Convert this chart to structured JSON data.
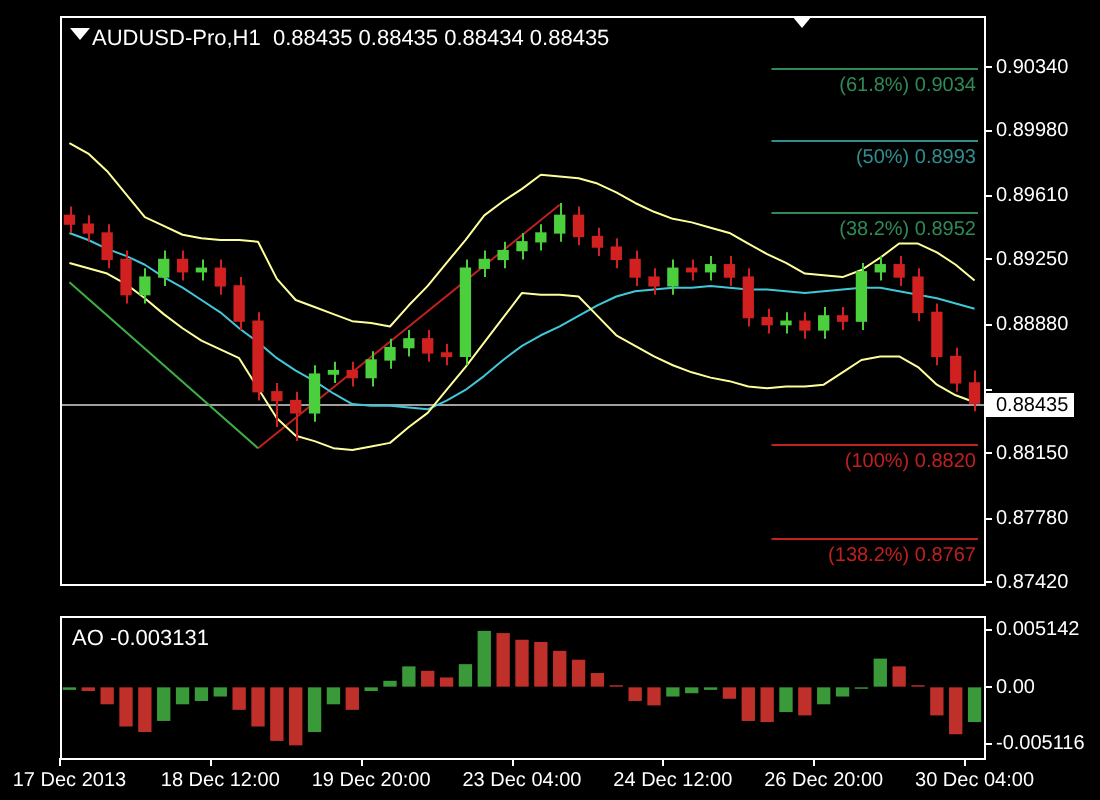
{
  "chart_data": [
    {
      "type": "candlestick",
      "title": "AUDUSD-Pro,H1  0.88435 0.88435 0.88434 0.88435",
      "categories": [
        null,
        null,
        null,
        null,
        null,
        null,
        null,
        null,
        null,
        null,
        null,
        null,
        null,
        null,
        null,
        null,
        null,
        null,
        null,
        null,
        null,
        null,
        null,
        null,
        null,
        null,
        null,
        null,
        null,
        null,
        null,
        null,
        null,
        null,
        null,
        null,
        null,
        null,
        null,
        null,
        null,
        null,
        null,
        null,
        null,
        null,
        null,
        null,
        null
      ],
      "ohlc": [
        [
          0.895,
          0.8955,
          0.894,
          0.8945
        ],
        [
          0.8945,
          0.895,
          0.8935,
          0.894
        ],
        [
          0.894,
          0.8945,
          0.892,
          0.8925
        ],
        [
          0.8925,
          0.893,
          0.89,
          0.8905
        ],
        [
          0.8905,
          0.892,
          0.89,
          0.8915
        ],
        [
          0.8915,
          0.893,
          0.891,
          0.8925
        ],
        [
          0.8925,
          0.893,
          0.8913,
          0.8918
        ],
        [
          0.8918,
          0.8925,
          0.8913,
          0.892
        ],
        [
          0.892,
          0.8925,
          0.8905,
          0.891
        ],
        [
          0.891,
          0.8915,
          0.8885,
          0.889
        ],
        [
          0.889,
          0.8895,
          0.8845,
          0.885
        ],
        [
          0.885,
          0.8855,
          0.883,
          0.8845
        ],
        [
          0.8845,
          0.885,
          0.8822,
          0.8838
        ],
        [
          0.8838,
          0.8865,
          0.8833,
          0.886
        ],
        [
          0.886,
          0.8867,
          0.8855,
          0.8862
        ],
        [
          0.8862,
          0.8867,
          0.8853,
          0.8858
        ],
        [
          0.8858,
          0.8873,
          0.8853,
          0.8868
        ],
        [
          0.8868,
          0.888,
          0.8863,
          0.8875
        ],
        [
          0.8875,
          0.8885,
          0.887,
          0.888
        ],
        [
          0.888,
          0.8885,
          0.8867,
          0.8872
        ],
        [
          0.8872,
          0.8877,
          0.8865,
          0.887
        ],
        [
          0.887,
          0.8925,
          0.8865,
          0.892
        ],
        [
          0.892,
          0.893,
          0.8915,
          0.8925
        ],
        [
          0.8925,
          0.8935,
          0.892,
          0.893
        ],
        [
          0.893,
          0.894,
          0.8925,
          0.8935
        ],
        [
          0.8935,
          0.8945,
          0.893,
          0.894
        ],
        [
          0.894,
          0.8957,
          0.8935,
          0.895
        ],
        [
          0.895,
          0.8955,
          0.8933,
          0.8938
        ],
        [
          0.8938,
          0.8943,
          0.8927,
          0.8932
        ],
        [
          0.8932,
          0.8937,
          0.892,
          0.8925
        ],
        [
          0.8925,
          0.893,
          0.891,
          0.8915
        ],
        [
          0.8915,
          0.892,
          0.8905,
          0.891
        ],
        [
          0.891,
          0.8925,
          0.8905,
          0.892
        ],
        [
          0.892,
          0.8925,
          0.8913,
          0.8918
        ],
        [
          0.8918,
          0.8927,
          0.8913,
          0.8922
        ],
        [
          0.8922,
          0.8927,
          0.891,
          0.8915
        ],
        [
          0.8915,
          0.892,
          0.8887,
          0.8892
        ],
        [
          0.8892,
          0.8897,
          0.8883,
          0.8888
        ],
        [
          0.8888,
          0.8895,
          0.8883,
          0.889
        ],
        [
          0.889,
          0.8895,
          0.888,
          0.8885
        ],
        [
          0.8885,
          0.8898,
          0.888,
          0.8893
        ],
        [
          0.8893,
          0.8898,
          0.8885,
          0.889
        ],
        [
          0.889,
          0.8923,
          0.8885,
          0.8918
        ],
        [
          0.8918,
          0.8927,
          0.8913,
          0.8922
        ],
        [
          0.8922,
          0.8927,
          0.891,
          0.8915
        ],
        [
          0.8915,
          0.892,
          0.889,
          0.8895
        ],
        [
          0.8895,
          0.89,
          0.8865,
          0.887
        ],
        [
          0.887,
          0.8875,
          0.885,
          0.8855
        ],
        [
          0.8855,
          0.8862,
          0.8839,
          0.88435
        ]
      ],
      "colors": [
        "#d02020",
        "#d02020",
        "#d02020",
        "#d02020",
        "#4ccf3c",
        "#4ccf3c",
        "#d02020",
        "#4ccf3c",
        "#d02020",
        "#d02020",
        "#d02020",
        "#d02020",
        "#d02020",
        "#4ccf3c",
        "#4ccf3c",
        "#d02020",
        "#4ccf3c",
        "#4ccf3c",
        "#4ccf3c",
        "#d02020",
        "#d02020",
        "#4ccf3c",
        "#4ccf3c",
        "#4ccf3c",
        "#4ccf3c",
        "#4ccf3c",
        "#4ccf3c",
        "#d02020",
        "#d02020",
        "#d02020",
        "#d02020",
        "#d02020",
        "#4ccf3c",
        "#d02020",
        "#4ccf3c",
        "#d02020",
        "#d02020",
        "#d02020",
        "#4ccf3c",
        "#d02020",
        "#4ccf3c",
        "#d02020",
        "#4ccf3c",
        "#4ccf3c",
        "#d02020",
        "#d02020",
        "#d02020",
        "#d02020",
        "#d02020"
      ],
      "series": [
        {
          "type": "line",
          "color": "#ffff99",
          "values": [
            0.8991,
            0.8985,
            0.8975,
            0.8962,
            0.8949,
            0.8944,
            0.8939,
            0.8937,
            0.8936,
            0.8936,
            0.8935,
            0.8914,
            0.8902,
            0.8898,
            0.8894,
            0.889,
            0.8889,
            0.8887,
            0.8899,
            0.891,
            0.8923,
            0.8936,
            0.895,
            0.8958,
            0.8965,
            0.8973,
            0.8972,
            0.8971,
            0.8968,
            0.8963,
            0.8957,
            0.8952,
            0.8948,
            0.8946,
            0.8943,
            0.894,
            0.8934,
            0.8928,
            0.8923,
            0.8917,
            0.8916,
            0.8915,
            0.8919,
            0.8926,
            0.8934,
            0.8934,
            0.8929,
            0.8922,
            0.8913
          ]
        },
        {
          "type": "line",
          "color": "#ffff99",
          "values": [
            0.8923,
            0.892,
            0.8917,
            0.8911,
            0.8903,
            0.8894,
            0.8886,
            0.8879,
            0.8874,
            0.8869,
            0.8852,
            0.8835,
            0.8825,
            0.8822,
            0.8818,
            0.8817,
            0.8819,
            0.8821,
            0.883,
            0.8838,
            0.8851,
            0.8864,
            0.8878,
            0.8892,
            0.8906,
            0.8905,
            0.8905,
            0.8904,
            0.8893,
            0.8882,
            0.8876,
            0.887,
            0.8865,
            0.8861,
            0.8858,
            0.8856,
            0.8853,
            0.8852,
            0.8853,
            0.8853,
            0.8854,
            0.8861,
            0.8868,
            0.887,
            0.887,
            0.8864,
            0.8854,
            0.8848,
            0.8844
          ]
        },
        {
          "type": "line",
          "color": "#40c8d8",
          "values": [
            0.894,
            0.8936,
            0.8931,
            0.8927,
            0.8922,
            0.8915,
            0.8909,
            0.8902,
            0.8895,
            0.8886,
            0.8878,
            0.8869,
            0.8862,
            0.8856,
            0.8849,
            0.8843,
            0.8842,
            0.8842,
            0.8841,
            0.884,
            0.8845,
            0.8851,
            0.8859,
            0.8868,
            0.8876,
            0.8882,
            0.8887,
            0.8893,
            0.8899,
            0.8904,
            0.8907,
            0.8908,
            0.8909,
            0.8909,
            0.891,
            0.8909,
            0.8908,
            0.8908,
            0.8907,
            0.8906,
            0.8907,
            0.8908,
            0.8909,
            0.8909,
            0.8907,
            0.8905,
            0.8903,
            0.89,
            0.8897
          ]
        },
        {
          "type": "line",
          "color": "#3cb043",
          "values": [
            0.8912,
            null,
            null,
            null,
            null,
            null,
            null,
            null,
            null,
            null,
            0.8818,
            null,
            null,
            null,
            null,
            null,
            null,
            null,
            null,
            null,
            null,
            null,
            null,
            null,
            null,
            null,
            null,
            null,
            null,
            null,
            null,
            null,
            null,
            null,
            null,
            null,
            null,
            null,
            null,
            null,
            null,
            null,
            null,
            null,
            null,
            null,
            null,
            null,
            null
          ]
        },
        {
          "type": "line",
          "color": "#c02020",
          "values": [
            null,
            null,
            null,
            null,
            null,
            null,
            null,
            null,
            null,
            null,
            0.8818,
            null,
            null,
            null,
            null,
            null,
            null,
            null,
            null,
            null,
            null,
            null,
            null,
            null,
            null,
            null,
            0.8956,
            null,
            null,
            null,
            null,
            null,
            null,
            null,
            null,
            null,
            null,
            null,
            null,
            null,
            null,
            null,
            null,
            null,
            null,
            null,
            null,
            null,
            null
          ]
        }
      ],
      "ref_lines": [
        {
          "axis": "y",
          "value": 0.88435,
          "label": "0.88435",
          "color": "#a0a0a0"
        },
        {
          "axis": "y",
          "value": 0.9034,
          "label": "(61.8%) 0.9034",
          "color": "#2e8b57"
        },
        {
          "axis": "y",
          "value": 0.8993,
          "label": "(50%) 0.8993",
          "color": "#2f8f8f"
        },
        {
          "axis": "y",
          "value": 0.8952,
          "label": "(38.2%) 0.8952",
          "color": "#2e8b57"
        },
        {
          "axis": "y",
          "value": 0.882,
          "label": "(100%) 0.8820",
          "color": "#c02020"
        },
        {
          "axis": "y",
          "value": 0.8767,
          "label": "(138.2%) 0.8767",
          "color": "#c02020"
        }
      ],
      "ylim": [
        0.8741,
        0.9063
      ],
      "yticks": [
        {
          "value": 0.9034,
          "label": "0.90340"
        },
        {
          "value": 0.8998,
          "label": "0.89980"
        },
        {
          "value": 0.8961,
          "label": "0.89610"
        },
        {
          "value": 0.8925,
          "label": "0.89250"
        },
        {
          "value": 0.8888,
          "label": "0.88880"
        },
        {
          "value": 0.8851,
          "label": null
        },
        {
          "value": 0.8815,
          "label": "0.88150"
        },
        {
          "value": 0.8778,
          "label": "0.87780"
        },
        {
          "value": 0.8742,
          "label": "0.87420"
        }
      ],
      "tick_labels": "y"
    },
    {
      "type": "bar",
      "title": "AO -0.003131",
      "categories": [
        "17 Dec 2013",
        null,
        null,
        null,
        null,
        null,
        null,
        null,
        "18 Dec 12:00",
        null,
        null,
        null,
        null,
        null,
        null,
        null,
        "19 Dec 20:00",
        null,
        null,
        null,
        null,
        null,
        null,
        null,
        "23 Dec 04:00",
        null,
        null,
        null,
        null,
        null,
        null,
        null,
        "24 Dec 12:00",
        null,
        null,
        null,
        null,
        null,
        null,
        null,
        "26 Dec 20:00",
        null,
        null,
        null,
        null,
        null,
        null,
        null,
        "30 Dec 04:00"
      ],
      "values": [
        -0.0002,
        -0.0003,
        -0.0015,
        -0.0035,
        -0.004,
        -0.003,
        -0.0015,
        -0.0012,
        -0.0008,
        -0.002,
        -0.0035,
        -0.0048,
        -0.0052,
        -0.004,
        -0.0015,
        -0.002,
        -0.0003,
        0.0005,
        0.0018,
        0.0014,
        0.0008,
        0.002,
        0.005,
        0.0048,
        0.0042,
        0.004,
        0.0032,
        0.0024,
        0.0012,
        0.0001,
        -0.0012,
        -0.0016,
        -0.0008,
        -0.0005,
        -0.0002,
        -0.001,
        -0.003,
        -0.0031,
        -0.0022,
        -0.0025,
        -0.0015,
        -0.0008,
        -0.0001,
        0.0025,
        0.0018,
        0.0001,
        -0.0025,
        -0.0042,
        -0.0031
      ],
      "colors": [
        "#3a9a3a",
        "#c0302a",
        "#c0302a",
        "#c0302a",
        "#c0302a",
        "#3a9a3a",
        "#3a9a3a",
        "#3a9a3a",
        "#3a9a3a",
        "#c0302a",
        "#c0302a",
        "#c0302a",
        "#c0302a",
        "#3a9a3a",
        "#3a9a3a",
        "#c0302a",
        "#3a9a3a",
        "#3a9a3a",
        "#3a9a3a",
        "#c0302a",
        "#c0302a",
        "#3a9a3a",
        "#3a9a3a",
        "#c0302a",
        "#c0302a",
        "#c0302a",
        "#c0302a",
        "#c0302a",
        "#c0302a",
        "#c0302a",
        "#c0302a",
        "#c0302a",
        "#3a9a3a",
        "#3a9a3a",
        "#3a9a3a",
        "#c0302a",
        "#c0302a",
        "#c0302a",
        "#3a9a3a",
        "#c0302a",
        "#3a9a3a",
        "#3a9a3a",
        "#3a9a3a",
        "#3a9a3a",
        "#c0302a",
        "#c0302a",
        "#c0302a",
        "#c0302a",
        "#3a9a3a"
      ],
      "ylim": [
        -0.0064,
        0.0064
      ],
      "yticks": [
        {
          "value": 0.005142,
          "label": "0.005142"
        },
        {
          "value": 0,
          "label": "0.00"
        },
        {
          "value": -0.005116,
          "label": "-0.005116"
        }
      ]
    }
  ]
}
